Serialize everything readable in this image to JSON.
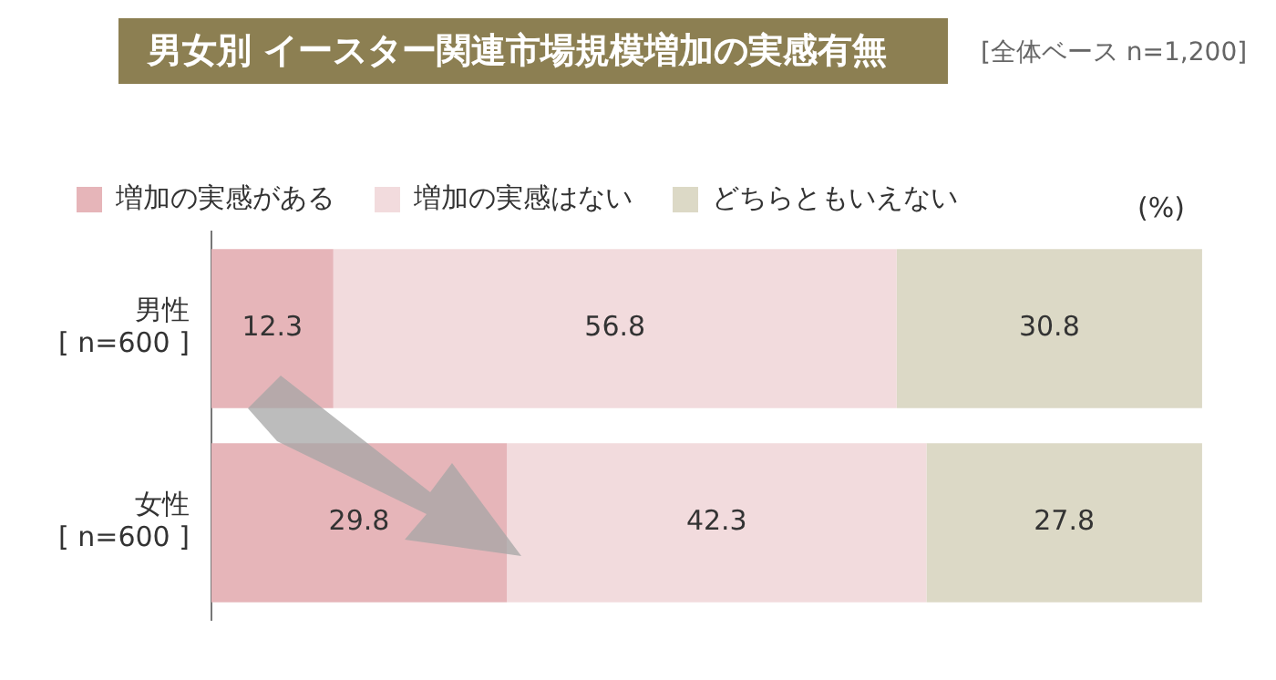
{
  "chart_data": {
    "type": "bar",
    "orientation": "horizontal",
    "stacked": true,
    "title": "男女別 イースター関連市場規模増加の実感有無",
    "subtitle": "[全体ベース n=1,200]",
    "categories": [
      "男性\n[ n=600 ]",
      "女性\n[ n=600 ]"
    ],
    "series": [
      {
        "name": "増加の実感がある",
        "color": "#e6b5b9",
        "values": [
          12.3,
          29.8
        ]
      },
      {
        "name": "増加の実感はない",
        "color": "#f2dbdd",
        "values": [
          56.8,
          42.3
        ]
      },
      {
        "name": "どちらともいえない",
        "color": "#dcd9c6",
        "values": [
          30.8,
          27.8
        ]
      }
    ],
    "data_labels": true,
    "legend": "top left",
    "annotations": [
      "(%)"
    ]
  }
}
